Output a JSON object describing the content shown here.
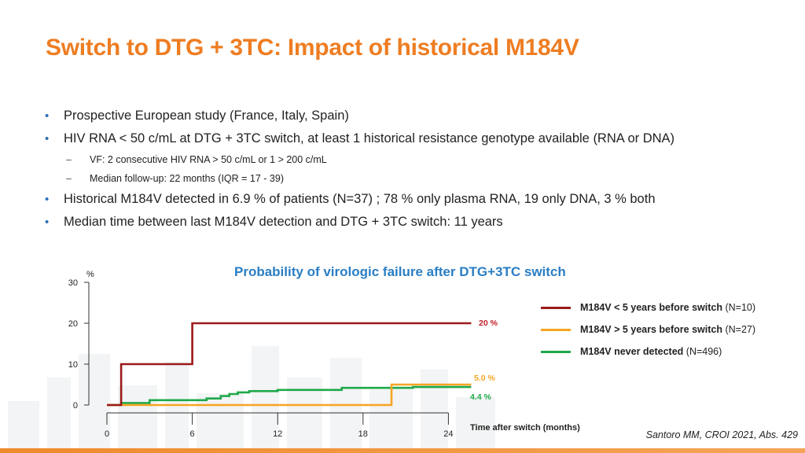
{
  "slide": {
    "title": "Switch to DTG + 3TC: Impact of historical M184V",
    "bullets": [
      {
        "level": 1,
        "text": "Prospective European study (France, Italy, Spain)"
      },
      {
        "level": 1,
        "text": "HIV RNA < 50 c/mL at DTG + 3TC switch, at least 1 historical resistance genotype available (RNA or DNA)"
      },
      {
        "level": 2,
        "text": "VF: 2 consecutive HIV RNA > 50 c/mL or 1 > 200 c/mL"
      },
      {
        "level": 2,
        "text": "Median follow-up: 22 months (IQR = 17 - 39)"
      },
      {
        "level": 1,
        "text": "Historical M184V detected in 6.9 % of patients (N=37) ; 78 % only plasma RNA, 19 only DNA, 3 % both"
      },
      {
        "level": 1,
        "text": "Median time between last M184V detection and DTG + 3TC switch: 11 years"
      }
    ],
    "citation": "Santoro MM, CROI 2021, Abs. 429"
  },
  "legend": [
    {
      "bold": "M184V < 5 years before switch",
      "rest": " (N=10)",
      "color": "#9b1a1a"
    },
    {
      "bold": "M184V > 5 years before switch",
      "rest": " (N=27)",
      "color": "#f5a623"
    },
    {
      "bold": "M184V never detected",
      "rest": " (N=496)",
      "color": "#1fa84a"
    }
  ],
  "chart_data": {
    "type": "line",
    "step": true,
    "title": "Probability of virologic failure after DTG+3TC switch",
    "ylabel": "%",
    "xlabel": "Time after switch (months)",
    "xlim": [
      0,
      24
    ],
    "ylim": [
      0,
      30
    ],
    "xticks": [
      0,
      6,
      12,
      18,
      24
    ],
    "yticks": [
      0,
      10,
      20,
      30
    ],
    "grid": false,
    "legend_position": "right",
    "series": [
      {
        "name": "M184V < 5 years before switch (N=10)",
        "color": "#9b1a1a",
        "x": [
          0,
          1,
          1,
          6,
          6,
          25.6
        ],
        "y": [
          0,
          0,
          10,
          10,
          20,
          20
        ],
        "end_label": "20 %"
      },
      {
        "name": "M184V > 5 years before switch (N=27)",
        "color": "#f5a623",
        "x": [
          0,
          20,
          20,
          25.6
        ],
        "y": [
          0,
          0,
          5.0,
          5.0
        ],
        "end_label": "5.0 %"
      },
      {
        "name": "M184V never detected (N=496)",
        "color": "#1fa84a",
        "x": [
          0,
          1,
          1,
          3,
          3,
          7,
          7,
          8,
          8,
          8.6,
          8.6,
          9.2,
          9.2,
          10,
          10,
          12,
          12,
          16.5,
          16.5,
          21.5,
          21.5,
          25.6
        ],
        "y": [
          0,
          0,
          0.5,
          0.5,
          1.2,
          1.2,
          1.6,
          1.6,
          2.2,
          2.2,
          2.7,
          2.7,
          3.1,
          3.1,
          3.4,
          3.4,
          3.7,
          3.7,
          4.2,
          4.2,
          4.4,
          4.4
        ],
        "end_label": "4.4 %"
      }
    ]
  }
}
